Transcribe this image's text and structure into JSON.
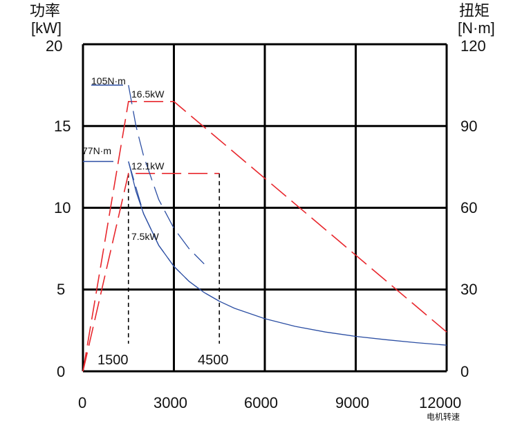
{
  "chart_data": {
    "type": "line",
    "xlabel": "电机转速",
    "ylabel": {
      "line1": "功率",
      "line2": "[kW]"
    },
    "y2label": {
      "line1": "扭矩",
      "line2": "[N·m]"
    },
    "xlim": [
      0,
      12000
    ],
    "ylim": [
      0,
      20
    ],
    "y2lim": [
      0,
      120
    ],
    "x_ticks": [
      "0",
      "3000",
      "6000",
      "9000",
      "12000"
    ],
    "y_ticks": [
      "0",
      "5",
      "10",
      "15",
      "20"
    ],
    "y2_ticks": [
      "0",
      "30",
      "60",
      "90",
      "120"
    ],
    "grid": true,
    "series": [
      {
        "color": "#e8262c",
        "dash": "long-dash",
        "axis": "left",
        "x": [
          0,
          1500,
          3000,
          12000
        ],
        "y": [
          0,
          16.5,
          16.5,
          2.4
        ]
      },
      {
        "color": "#e8262c",
        "dash": "long-dash",
        "axis": "left",
        "x": [
          0,
          1500,
          4500
        ],
        "y": [
          0,
          12.1,
          12.1
        ]
      },
      {
        "color": "#2b4ea3",
        "dash": "long-dash",
        "axis": "right",
        "x": [
          1500,
          1750,
          2000,
          2500,
          3000,
          3500,
          4000
        ],
        "y": [
          105,
          90,
          79,
          63,
          52.5,
          45,
          39.4
        ]
      },
      {
        "color": "#2b4ea3",
        "dash": "long-dash",
        "axis": "right",
        "x": [
          1500,
          2000,
          2500,
          3000,
          3500,
          4000,
          4500
        ],
        "y": [
          77,
          57.8,
          46.2,
          38.5,
          33,
          28.9,
          25.7
        ]
      },
      {
        "color": "#2b4ea3",
        "dash": "solid",
        "axis": "right",
        "x": [
          1500,
          1750,
          2000,
          2500,
          3000,
          3500,
          4000,
          4500,
          5000,
          6000,
          7000,
          8000,
          9000,
          10000,
          11000,
          12000
        ],
        "y": [
          77,
          66,
          57.8,
          46.2,
          38.5,
          33,
          28.9,
          25.7,
          23.1,
          19.3,
          16.5,
          14.4,
          12.8,
          11.6,
          10.5,
          9.6
        ]
      }
    ],
    "reference_lines_x": [
      1500,
      4500
    ],
    "reference_labels": [
      "1500",
      "4500"
    ],
    "torque_markers": [
      {
        "label": "105N·m",
        "value": 105
      },
      {
        "label": "77N·m",
        "value": 77
      }
    ],
    "annotations": [
      {
        "text": "16.5kW",
        "x": 1500,
        "y": 16.5
      },
      {
        "text": "12.1kW",
        "x": 1500,
        "y": 12.1
      },
      {
        "text": "7.5kW",
        "x": 1500,
        "y": 7.5
      }
    ]
  }
}
